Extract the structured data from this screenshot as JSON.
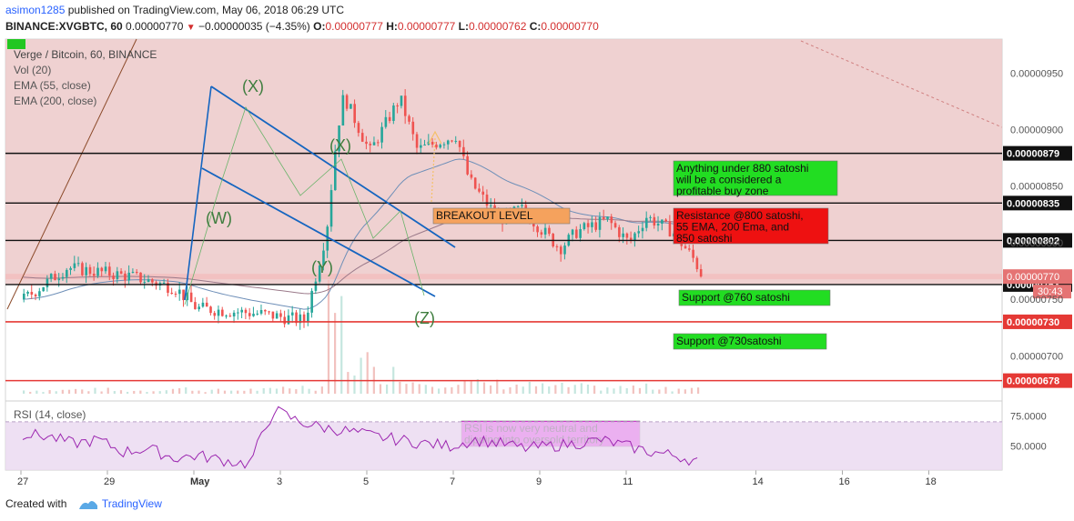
{
  "header": {
    "user": "asimon1285",
    "published_text": "published on TradingView.com, May 06, 2018 06:29 UTC",
    "symbol": "BINANCE:XVGBTC, 60",
    "price": "0.00000770",
    "change": "−0.00000035 (−4.35%)",
    "o_label": "O:",
    "o": "0.00000777",
    "h_label": "H:",
    "h": "0.00000777",
    "l_label": "L:",
    "l": "0.00000762",
    "c_label": "C:",
    "c": "0.00000770"
  },
  "legend": {
    "title": "Verge / Bitcoin, 60, BINANCE",
    "vol": "Vol (20)",
    "ema55": "EMA (55, close)",
    "ema200": "EMA (200, close)",
    "rsi": "RSI (14, close)"
  },
  "footer": {
    "created": "Created with",
    "brand": "TradingView"
  },
  "colors": {
    "up": "#26a69a",
    "down": "#ef5350",
    "zone": "#ecc9c9",
    "channel": "#1565c0",
    "rsi_zone": "#ead8f0",
    "rsi_line": "#9c27b0"
  },
  "chart_data": {
    "type": "candlestick",
    "y_axis_ticks": [
      "0.00000950",
      "0.00000900",
      "0.00000850",
      "0.00000800",
      "0.00000750",
      "0.00000700"
    ],
    "ylim": [
      6.6e-06,
      9.8e-06
    ],
    "x_axis_ticks": [
      "27",
      "29",
      "May",
      "3",
      "5",
      "7",
      "9",
      "11",
      "14",
      "16",
      "18"
    ],
    "price_levels": [
      {
        "label": "0.00000879",
        "value": 8.79e-06,
        "style": "black"
      },
      {
        "label": "0.00000835",
        "value": 8.35e-06,
        "style": "black"
      },
      {
        "label": "0.00000802",
        "value": 8.02e-06,
        "style": "black"
      },
      {
        "label": "0.00000763",
        "value": 7.63e-06,
        "style": "black"
      },
      {
        "label": "0.00000730",
        "value": 7.3e-06,
        "style": "red"
      },
      {
        "label": "0.00000678",
        "value": 6.78e-06,
        "style": "red"
      }
    ],
    "last_price": {
      "label": "0.00000770",
      "value": 7.7e-06,
      "countdown": "30:43"
    },
    "close_path": [
      [
        0.0,
        7.5e-06
      ],
      [
        1.0,
        7.78e-06
      ],
      [
        2.5,
        7.7e-06
      ],
      [
        3.5,
        7.6e-06
      ],
      [
        4.0,
        7.42e-06
      ],
      [
        5.5,
        7.37e-06
      ],
      [
        6.5,
        7.31e-06
      ],
      [
        7.0,
        8.1e-06
      ],
      [
        7.25,
        9e-06
      ],
      [
        7.4,
        9.3e-06
      ],
      [
        8.0,
        8.8e-06
      ],
      [
        8.7,
        9.28e-06
      ],
      [
        9.1,
        8.82e-06
      ],
      [
        10.0,
        8.95e-06
      ],
      [
        10.3,
        8.55e-06
      ],
      [
        11.0,
        8.2e-06
      ],
      [
        11.5,
        8.3e-06
      ],
      [
        12.4,
        7.95e-06
      ],
      [
        12.8,
        8.1e-06
      ],
      [
        13.5,
        8.2e-06
      ],
      [
        14.0,
        8e-06
      ],
      [
        14.4,
        8.23e-06
      ],
      [
        15.0,
        8.1e-06
      ],
      [
        15.5,
        7.85e-06
      ],
      [
        15.7,
        7.7e-06
      ]
    ],
    "volume_profile": [
      0.1,
      0.12,
      0.09,
      0.15,
      0.1,
      0.12,
      0.2,
      0.9,
      0.6,
      0.35,
      0.3,
      0.25,
      0.22,
      0.18,
      0.2,
      0.15,
      0.12
    ],
    "rsi_ticks": [
      "75.0000",
      "50.0000"
    ],
    "rsi_ylim": [
      30,
      85
    ],
    "rsi_values": [
      60,
      58,
      52,
      55,
      45,
      48,
      40,
      42,
      38,
      35,
      80,
      70,
      65,
      62,
      58,
      55,
      52,
      50,
      55,
      52,
      48,
      50,
      52,
      55,
      50,
      45,
      42,
      36
    ],
    "waves": [
      "(X)",
      "(W)",
      "(X)",
      "(Y)",
      "(Z)"
    ],
    "annotations": [
      {
        "text": "BREAKOUT LEVEL",
        "color": "#f5a25d"
      },
      {
        "lines": [
          "Anything under 880 satoshi",
          "will be a considered a",
          "profitable buy zone"
        ],
        "color": "#22dd22"
      },
      {
        "lines": [
          "Resistance @800 satoshi,",
          "55 EMA, 200 Ema, and",
          "850 satoshi"
        ],
        "color": "#ee1111"
      },
      {
        "lines": [
          "Support @760 satoshi"
        ],
        "color": "#22dd22"
      },
      {
        "lines": [
          "Support @730satoshi"
        ],
        "color": "#22dd22"
      },
      {
        "lines": [
          "RSI is now very neutral and",
          "dipping into oversold territory"
        ],
        "color": "#ee11ee"
      }
    ]
  }
}
